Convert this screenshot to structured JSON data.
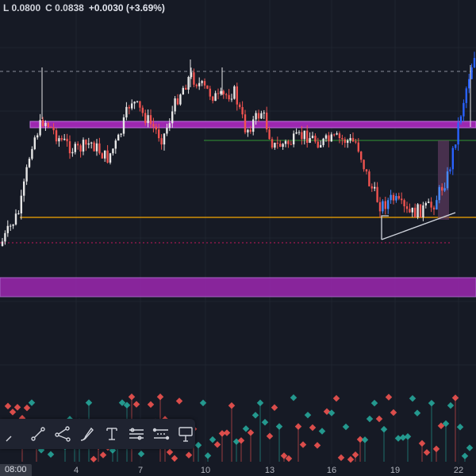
{
  "ohlc": {
    "low": "L 0.0800",
    "close": "C 0.0838",
    "change": "+0.0030 (+3.69%)"
  },
  "xaxis": {
    "ticks": [
      "4",
      "7",
      "10",
      "13",
      "16",
      "19",
      "22"
    ],
    "crosshair_time": "08:00"
  },
  "toolbar": {
    "tools": [
      {
        "name": "trend-line-tool-icon"
      },
      {
        "name": "ray-tool-icon"
      },
      {
        "name": "path-tool-icon"
      },
      {
        "name": "brush-tool-icon"
      },
      {
        "name": "text-cursor-tool-icon"
      },
      {
        "name": "horizontal-lines-tool-icon"
      },
      {
        "name": "parallel-channel-tool-icon"
      },
      {
        "name": "flag-marker-tool-icon"
      }
    ]
  },
  "colors": {
    "background": "#161a25",
    "up": "#e6e6e6",
    "down": "#ef5350",
    "blue_bar": "#2962ff",
    "zone": "#9c27b0",
    "support_line": "#f7a600",
    "resistance_line": "#2e7d32",
    "dotted_red": "#c2185b"
  }
}
